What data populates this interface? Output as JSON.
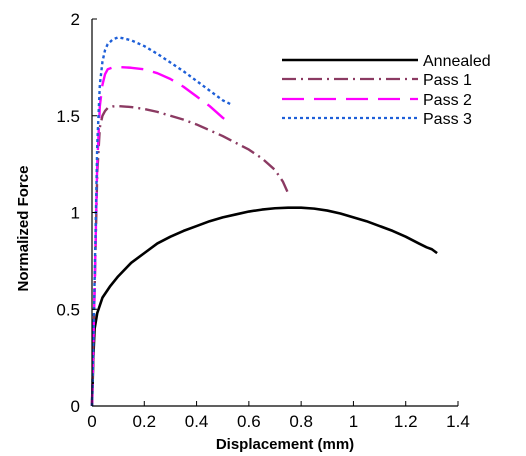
{
  "chart_data": {
    "type": "line",
    "xlabel": "Displacement (mm)",
    "ylabel": "Normalized Force",
    "xlim": [
      0,
      1.4
    ],
    "ylim": [
      0,
      2
    ],
    "xticks": [
      0,
      0.2,
      0.4,
      0.6,
      0.8,
      1,
      1.2,
      1.4
    ],
    "yticks": [
      0,
      0.5,
      1,
      1.5,
      2
    ],
    "xtick_labels": [
      "0",
      "0.2",
      "0.4",
      "0.6",
      "0.8",
      "1",
      "1.2",
      "1.4"
    ],
    "ytick_labels": [
      "0",
      "0.5",
      "1",
      "1.5",
      "2"
    ],
    "grid": false,
    "legend_position": "top-right",
    "series": [
      {
        "name": "Annealed",
        "color": "#000000",
        "dash": "solid",
        "x": [
          0,
          0.005,
          0.01,
          0.02,
          0.04,
          0.07,
          0.1,
          0.15,
          0.2,
          0.25,
          0.3,
          0.35,
          0.4,
          0.45,
          0.5,
          0.55,
          0.6,
          0.65,
          0.7,
          0.75,
          0.8,
          0.85,
          0.9,
          0.95,
          1.0,
          1.05,
          1.1,
          1.15,
          1.2,
          1.25,
          1.28,
          1.3,
          1.32
        ],
        "y": [
          0,
          0.25,
          0.4,
          0.48,
          0.56,
          0.62,
          0.67,
          0.74,
          0.79,
          0.84,
          0.875,
          0.905,
          0.93,
          0.955,
          0.975,
          0.99,
          1.005,
          1.015,
          1.022,
          1.025,
          1.025,
          1.02,
          1.01,
          0.995,
          0.975,
          0.955,
          0.93,
          0.905,
          0.875,
          0.84,
          0.82,
          0.81,
          0.79
        ]
      },
      {
        "name": "Pass 1",
        "color": "#8b3a62",
        "dash": "dashdot",
        "x": [
          0,
          0.01,
          0.02,
          0.03,
          0.04,
          0.05,
          0.06,
          0.08,
          0.1,
          0.15,
          0.2,
          0.25,
          0.3,
          0.35,
          0.4,
          0.45,
          0.5,
          0.55,
          0.6,
          0.65,
          0.7,
          0.73,
          0.75
        ],
        "y": [
          0,
          0.6,
          1.2,
          1.44,
          1.5,
          1.525,
          1.54,
          1.548,
          1.55,
          1.545,
          1.535,
          1.52,
          1.5,
          1.48,
          1.455,
          1.425,
          1.395,
          1.36,
          1.325,
          1.28,
          1.22,
          1.16,
          1.1
        ]
      },
      {
        "name": "Pass 2",
        "color": "#ff00ff",
        "dash": "longdash",
        "x": [
          0,
          0.01,
          0.02,
          0.03,
          0.04,
          0.05,
          0.06,
          0.08,
          0.1,
          0.15,
          0.2,
          0.25,
          0.3,
          0.35,
          0.4,
          0.45,
          0.5,
          0.53
        ],
        "y": [
          0,
          0.6,
          1.25,
          1.55,
          1.66,
          1.715,
          1.74,
          1.75,
          1.752,
          1.748,
          1.74,
          1.72,
          1.69,
          1.65,
          1.6,
          1.55,
          1.49,
          1.46
        ]
      },
      {
        "name": "Pass 3",
        "color": "#1e5fd8",
        "dash": "dotted",
        "x": [
          0,
          0.01,
          0.02,
          0.03,
          0.04,
          0.05,
          0.06,
          0.08,
          0.1,
          0.12,
          0.15,
          0.2,
          0.25,
          0.3,
          0.35,
          0.4,
          0.45,
          0.5,
          0.53
        ],
        "y": [
          0,
          0.65,
          1.35,
          1.66,
          1.78,
          1.84,
          1.87,
          1.895,
          1.905,
          1.9,
          1.89,
          1.86,
          1.82,
          1.775,
          1.73,
          1.68,
          1.63,
          1.58,
          1.56
        ]
      }
    ]
  }
}
